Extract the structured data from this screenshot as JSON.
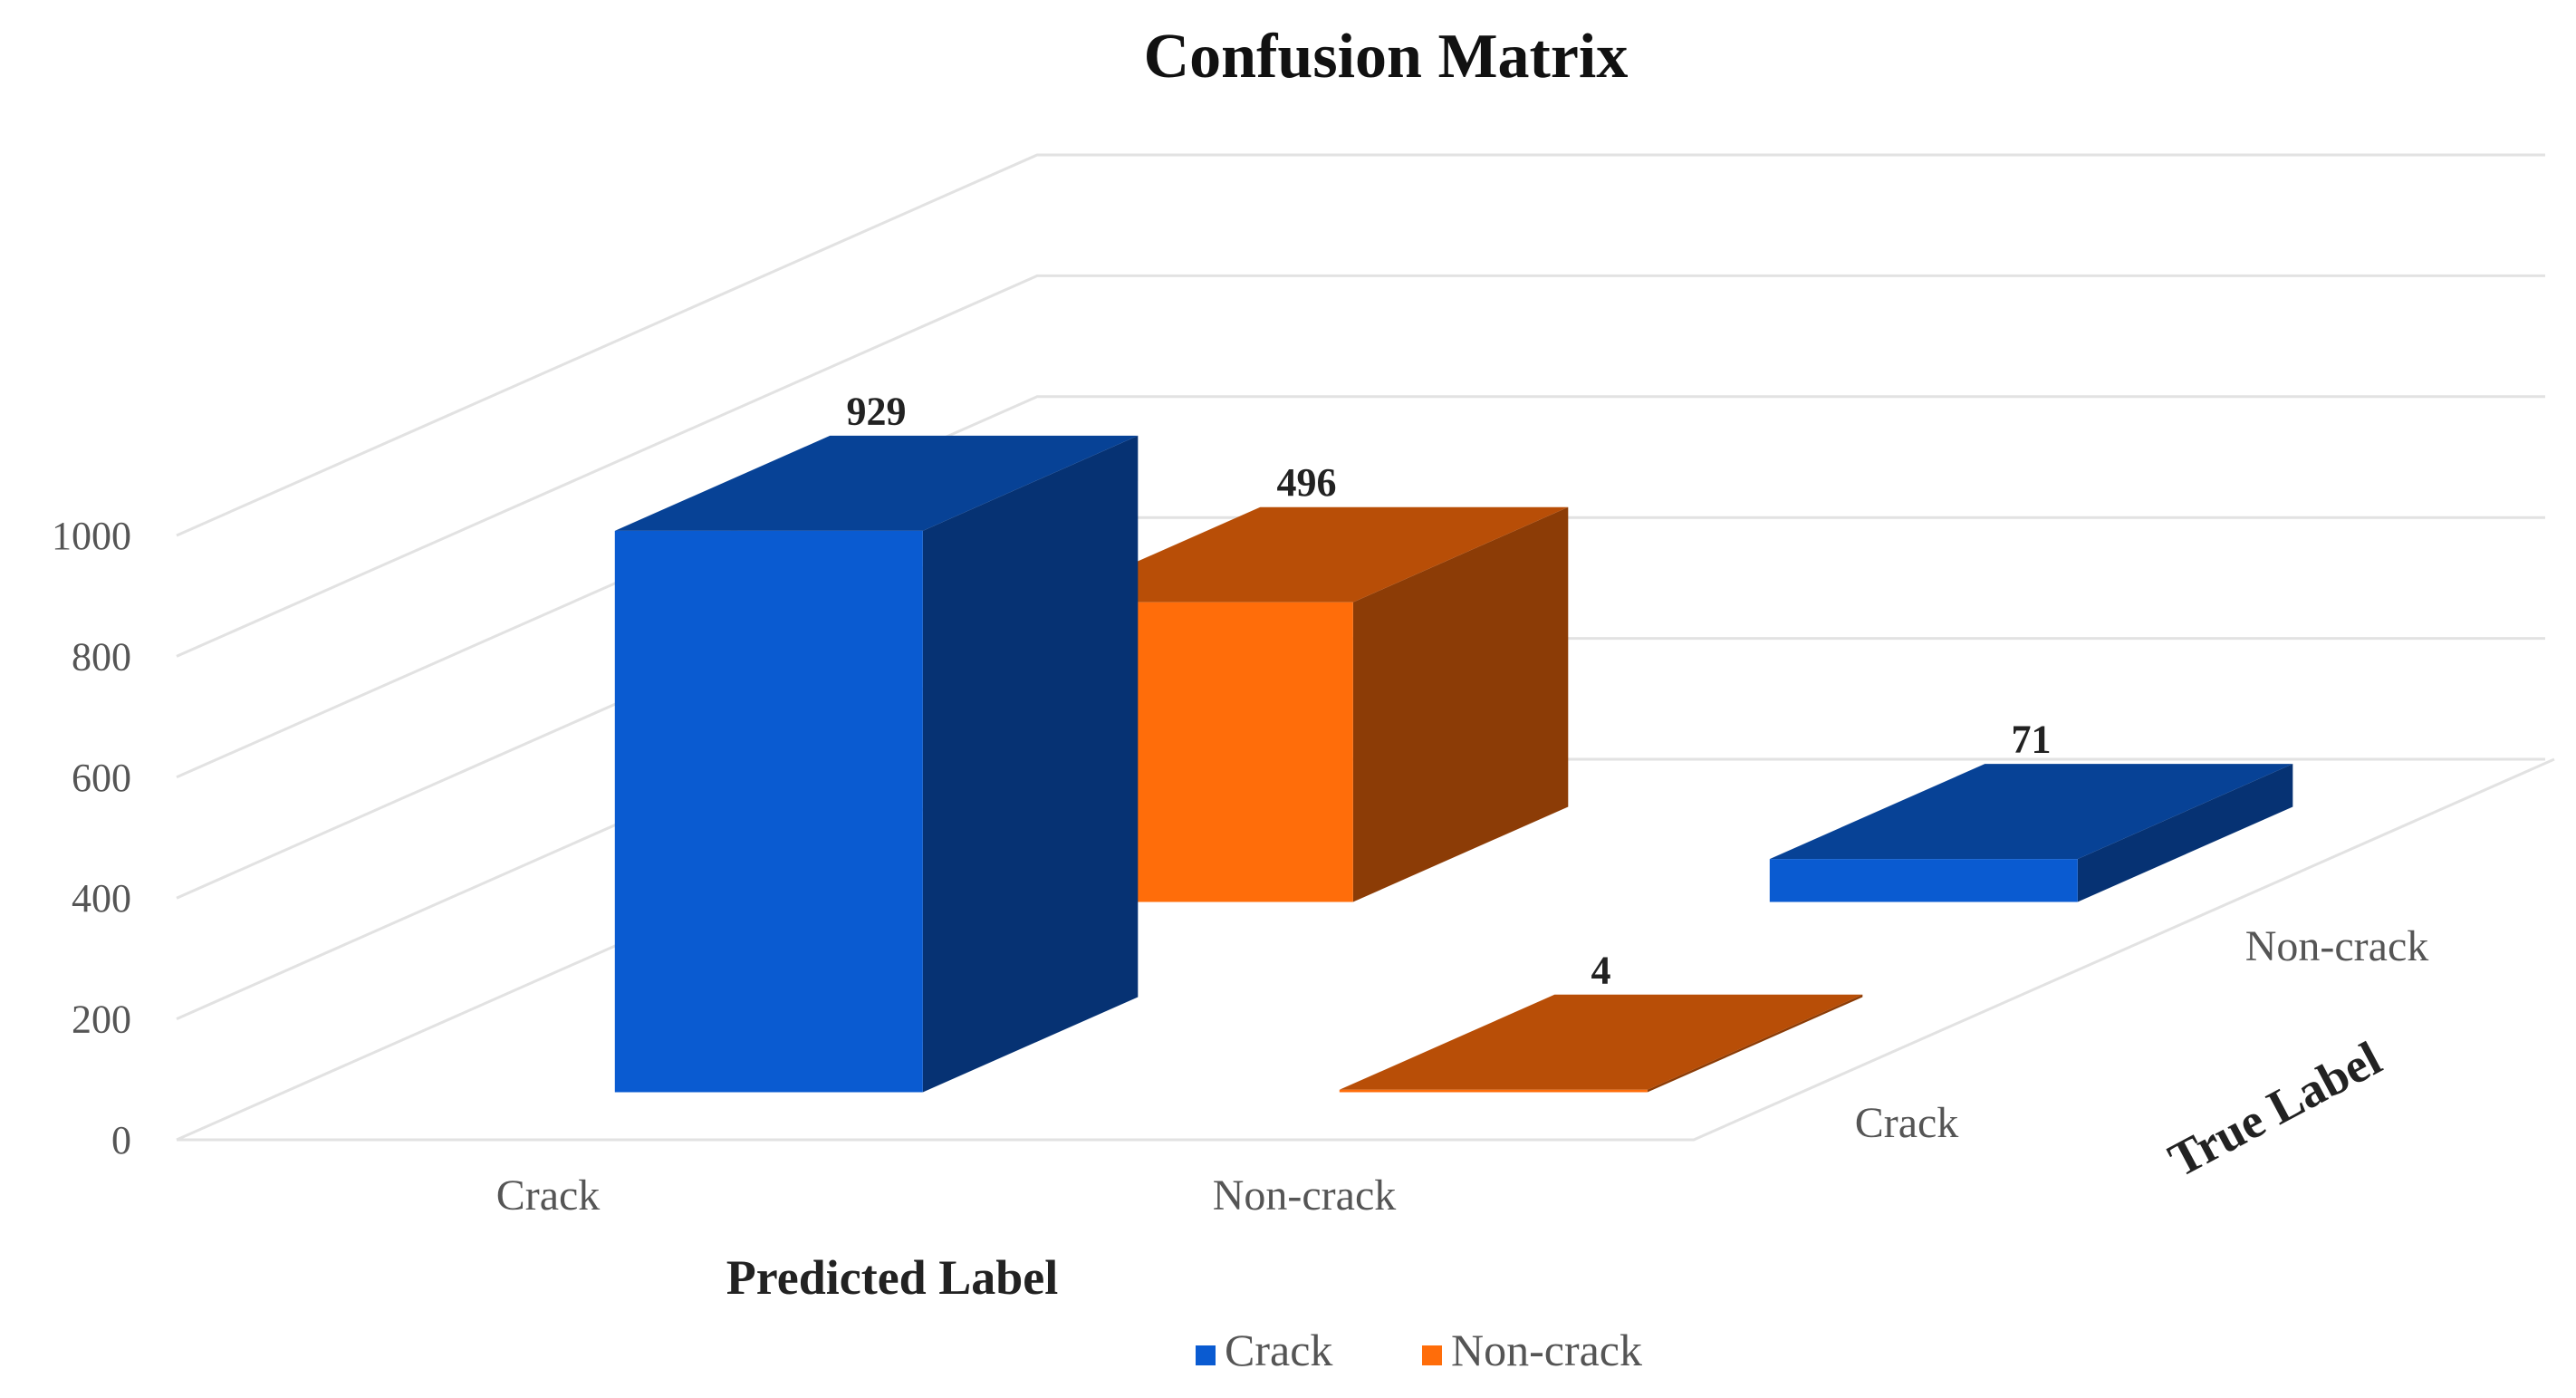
{
  "chart_data": {
    "type": "bar",
    "subtype": "3d-column",
    "title": "Confusion Matrix",
    "xlabel": "Predicted Label",
    "zlabel": "True Label",
    "categories": [
      "Crack",
      "Non-crack"
    ],
    "depth_categories": [
      "Crack",
      "Non-crack"
    ],
    "yticks": [
      "0",
      "200",
      "400",
      "600",
      "800",
      "1000"
    ],
    "ylim": [
      0,
      1000
    ],
    "grid": true,
    "legend_position": "bottom",
    "series": [
      {
        "name": "Crack",
        "color": "#0a5bd1",
        "values": [
          929,
          71
        ]
      },
      {
        "name": "Non-crack",
        "color": "#ff6d0a",
        "values": [
          4,
          496
        ]
      }
    ]
  }
}
